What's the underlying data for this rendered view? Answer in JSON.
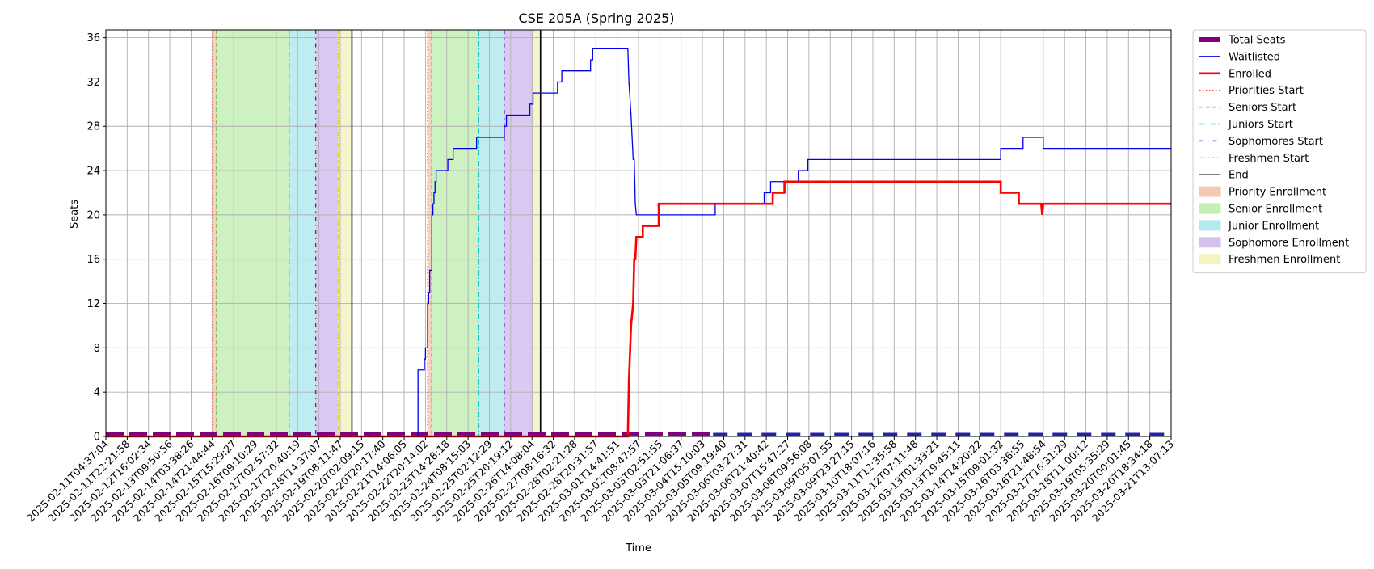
{
  "chart_data": {
    "type": "line",
    "title": "CSE 205A (Spring 2025)",
    "xlabel": "Time",
    "ylabel": "Seats",
    "ylim": [
      0,
      36.7
    ],
    "yticks": [
      0,
      4,
      8,
      12,
      16,
      20,
      24,
      28,
      32,
      36
    ],
    "grid": true,
    "legend_position": "outside-top-right",
    "x_tick_labels": [
      "2025-02-11T04:37:04",
      "2025-02-11T22:21:58",
      "2025-02-12T16:02:34",
      "2025-02-13T09:50:56",
      "2025-02-14T03:38:26",
      "2025-02-14T21:44:44",
      "2025-02-15T15:29:27",
      "2025-02-16T09:10:29",
      "2025-02-17T02:57:32",
      "2025-02-17T20:40:19",
      "2025-02-18T14:37:07",
      "2025-02-19T08:11:47",
      "2025-02-20T02:09:15",
      "2025-02-20T20:17:40",
      "2025-02-21T14:06:05",
      "2025-02-22T20:14:02",
      "2025-02-23T14:28:18",
      "2025-02-24T08:15:03",
      "2025-02-25T02:12:29",
      "2025-02-25T20:19:12",
      "2025-02-26T14:08:04",
      "2025-02-27T08:16:32",
      "2025-02-28T02:21:28",
      "2025-02-28T20:31:57",
      "2025-03-01T14:41:51",
      "2025-03-02T08:47:57",
      "2025-03-03T02:51:55",
      "2025-03-03T21:06:37",
      "2025-03-04T15:10:03",
      "2025-03-05T09:19:40",
      "2025-03-06T03:27:31",
      "2025-03-06T21:40:42",
      "2025-03-07T15:47:27",
      "2025-03-08T09:56:08",
      "2025-03-09T05:07:55",
      "2025-03-09T23:27:15",
      "2025-03-10T18:07:16",
      "2025-03-11T12:35:58",
      "2025-03-12T07:11:48",
      "2025-03-13T01:33:21",
      "2025-03-13T19:45:11",
      "2025-03-14T14:20:22",
      "2025-03-15T09:01:32",
      "2025-03-16T03:36:55",
      "2025-03-16T21:48:54",
      "2025-03-17T16:31:29",
      "2025-03-18T11:00:12",
      "2025-03-19T05:35:29",
      "2025-03-20T00:01:45",
      "2025-03-20T18:34:18",
      "2025-03-21T13:07:13"
    ],
    "x_tick_positions": [
      0,
      1,
      2,
      3,
      4,
      5,
      6,
      7,
      8,
      9,
      10,
      11,
      12,
      13,
      14,
      15,
      16,
      17,
      18,
      19,
      20,
      21,
      22,
      23,
      24,
      25,
      26,
      27,
      28,
      29,
      30,
      31,
      32,
      33,
      34,
      35,
      36,
      37,
      38,
      39,
      40,
      41,
      42,
      43,
      44,
      45,
      46,
      47,
      48,
      49,
      50
    ],
    "xlim": [
      0,
      50
    ],
    "phase_spans": [
      {
        "name": "Priority Enrollment",
        "start": 5.0,
        "end": 5.2,
        "color": "#f4c9b4"
      },
      {
        "name": "Senior Enrollment",
        "start": 5.2,
        "end": 8.6,
        "color": "#c6efb6"
      },
      {
        "name": "Junior Enrollment",
        "start": 8.6,
        "end": 9.85,
        "color": "#b4e9ef"
      },
      {
        "name": "Sophomore Enrollment",
        "start": 9.85,
        "end": 10.9,
        "color": "#d4c1f0"
      },
      {
        "name": "Freshmen Enrollment",
        "start": 10.9,
        "end": 11.55,
        "color": "#f3f3c4"
      },
      {
        "name": "Priority Enrollment",
        "start": 15.1,
        "end": 15.3,
        "color": "#f4c9b4"
      },
      {
        "name": "Senior Enrollment",
        "start": 15.3,
        "end": 17.5,
        "color": "#c6efb6"
      },
      {
        "name": "Junior Enrollment",
        "start": 17.5,
        "end": 18.7,
        "color": "#b4e9ef"
      },
      {
        "name": "Sophomore Enrollment",
        "start": 18.7,
        "end": 20.05,
        "color": "#d4c1f0"
      },
      {
        "name": "Freshmen Enrollment",
        "start": 20.05,
        "end": 20.4,
        "color": "#f3f3c4"
      }
    ],
    "vlines": [
      {
        "name": "Priorities Start",
        "x": 5.0,
        "color": "#ff3b3b",
        "dash": "1.5,2.5",
        "width": 1.2
      },
      {
        "name": "Seniors Start",
        "x": 5.2,
        "color": "#2ecc1a",
        "dash": "5,3",
        "width": 1.4
      },
      {
        "name": "Juniors Start",
        "x": 8.6,
        "color": "#16c2cc",
        "dash": "7,2.5,1.5,2.5",
        "width": 1.4
      },
      {
        "name": "Sophomores Start",
        "x": 9.85,
        "color": "#6a1ecc",
        "dash": "5,5,1.5,5",
        "width": 1.4
      },
      {
        "name": "Freshmen Start",
        "x": 10.9,
        "color": "#d8d21a",
        "dash": "5,2,1.5,2,1.5,2",
        "width": 1.2
      },
      {
        "name": "End",
        "x": 11.55,
        "color": "#000000",
        "dash": "",
        "width": 1.6
      },
      {
        "name": "Priorities Start",
        "x": 15.1,
        "color": "#ff3b3b",
        "dash": "1.5,2.5",
        "width": 1.2
      },
      {
        "name": "Seniors Start",
        "x": 15.3,
        "color": "#2ecc1a",
        "dash": "5,3",
        "width": 1.4
      },
      {
        "name": "Juniors Start",
        "x": 17.5,
        "color": "#16c2cc",
        "dash": "7,2.5,1.5,2.5",
        "width": 1.4
      },
      {
        "name": "Sophomores Start",
        "x": 18.7,
        "color": "#6a1ecc",
        "dash": "5,5,1.5,5",
        "width": 1.4
      },
      {
        "name": "Freshmen Start",
        "x": 20.05,
        "color": "#d8d21a",
        "dash": "5,2,1.5,2,1.5,2",
        "width": 1.2
      },
      {
        "name": "End",
        "x": 20.4,
        "color": "#000000",
        "dash": "",
        "width": 1.6
      }
    ],
    "series": [
      {
        "name": "Total Seats",
        "style": "total",
        "color": "#800080",
        "points": [
          [
            0,
            0.2
          ],
          [
            28.5,
            0.2
          ]
        ],
        "points2": [
          [
            28.5,
            0.2
          ],
          [
            50,
            0.2
          ]
        ]
      },
      {
        "name": "Waitlisted",
        "style": "waitlist",
        "color": "#0000ee",
        "points": [
          [
            0,
            0
          ],
          [
            14.65,
            0
          ],
          [
            14.65,
            6
          ],
          [
            14.95,
            6
          ],
          [
            14.95,
            7
          ],
          [
            15.0,
            7
          ],
          [
            15.0,
            8
          ],
          [
            15.1,
            8
          ],
          [
            15.1,
            12
          ],
          [
            15.15,
            12
          ],
          [
            15.15,
            13
          ],
          [
            15.2,
            13
          ],
          [
            15.2,
            15
          ],
          [
            15.3,
            15
          ],
          [
            15.3,
            20
          ],
          [
            15.35,
            20
          ],
          [
            15.35,
            21
          ],
          [
            15.4,
            21
          ],
          [
            15.4,
            22
          ],
          [
            15.45,
            22
          ],
          [
            15.45,
            23
          ],
          [
            15.5,
            23
          ],
          [
            15.5,
            24
          ],
          [
            16.05,
            24
          ],
          [
            16.05,
            25
          ],
          [
            16.3,
            25
          ],
          [
            16.3,
            26
          ],
          [
            17.4,
            26
          ],
          [
            17.4,
            27
          ],
          [
            18.7,
            27
          ],
          [
            18.7,
            28
          ],
          [
            18.8,
            28
          ],
          [
            18.8,
            29
          ],
          [
            19.9,
            29
          ],
          [
            19.9,
            30
          ],
          [
            20.05,
            30
          ],
          [
            20.05,
            31
          ],
          [
            21.2,
            31
          ],
          [
            21.2,
            32
          ],
          [
            21.4,
            32
          ],
          [
            21.4,
            33
          ],
          [
            22.75,
            33
          ],
          [
            22.75,
            34
          ],
          [
            22.85,
            34
          ],
          [
            22.85,
            35
          ],
          [
            24.5,
            35
          ],
          [
            24.55,
            32
          ],
          [
            24.65,
            29
          ],
          [
            24.75,
            25
          ],
          [
            24.8,
            25
          ],
          [
            24.85,
            21
          ],
          [
            24.9,
            20
          ],
          [
            28.6,
            20
          ],
          [
            28.6,
            21
          ],
          [
            30.9,
            21
          ],
          [
            30.9,
            22
          ],
          [
            31.2,
            22
          ],
          [
            31.2,
            23
          ],
          [
            32.5,
            23
          ],
          [
            32.5,
            24
          ],
          [
            32.95,
            24
          ],
          [
            32.95,
            25
          ],
          [
            42.0,
            25
          ],
          [
            42.0,
            26
          ],
          [
            43.05,
            26
          ],
          [
            43.05,
            27
          ],
          [
            44.0,
            27
          ],
          [
            44.0,
            26
          ],
          [
            50,
            26
          ]
        ]
      },
      {
        "name": "Enrolled",
        "style": "enrolled",
        "color": "#ff0000",
        "points": [
          [
            0,
            0
          ],
          [
            24.5,
            0
          ],
          [
            24.55,
            5
          ],
          [
            24.65,
            10
          ],
          [
            24.7,
            11
          ],
          [
            24.75,
            12
          ],
          [
            24.8,
            16
          ],
          [
            24.85,
            16
          ],
          [
            24.9,
            18
          ],
          [
            25.2,
            18
          ],
          [
            25.2,
            19
          ],
          [
            25.95,
            19
          ],
          [
            25.95,
            21
          ],
          [
            31.3,
            21
          ],
          [
            31.3,
            22
          ],
          [
            31.85,
            22
          ],
          [
            31.85,
            23
          ],
          [
            42.0,
            23
          ],
          [
            42.0,
            22
          ],
          [
            42.85,
            22
          ],
          [
            42.85,
            21
          ],
          [
            43.9,
            21
          ],
          [
            43.95,
            20
          ],
          [
            44.0,
            21
          ],
          [
            50,
            21
          ]
        ]
      }
    ],
    "legend": [
      {
        "label": "Total Seats",
        "kind": "thick",
        "color": "#800080",
        "dash": ""
      },
      {
        "label": "Waitlisted",
        "kind": "line",
        "color": "#0000ee",
        "dash": ""
      },
      {
        "label": "Enrolled",
        "kind": "line2",
        "color": "#ff0000",
        "dash": ""
      },
      {
        "label": "Priorities Start",
        "kind": "line",
        "color": "#ff3b3b",
        "dash": "1.5,2.5"
      },
      {
        "label": "Seniors Start",
        "kind": "line",
        "color": "#2ecc1a",
        "dash": "5,3"
      },
      {
        "label": "Juniors Start",
        "kind": "line",
        "color": "#16c2cc",
        "dash": "7,2.5,1.5,2.5"
      },
      {
        "label": "Sophomores Start",
        "kind": "line",
        "color": "#6a1ecc",
        "dash": "5,5,1.5,5"
      },
      {
        "label": "Freshmen Start",
        "kind": "line",
        "color": "#d8d21a",
        "dash": "5,2,1.5,2,1.5,2"
      },
      {
        "label": "End",
        "kind": "line",
        "color": "#000000",
        "dash": ""
      },
      {
        "label": "Priority Enrollment",
        "kind": "patch",
        "color": "#f4c9b4"
      },
      {
        "label": "Senior Enrollment",
        "kind": "patch",
        "color": "#c6efb6"
      },
      {
        "label": "Junior Enrollment",
        "kind": "patch",
        "color": "#b4e9ef"
      },
      {
        "label": "Sophomore Enrollment",
        "kind": "patch",
        "color": "#d4c1f0"
      },
      {
        "label": "Freshmen Enrollment",
        "kind": "patch",
        "color": "#f3f3c4"
      }
    ]
  }
}
